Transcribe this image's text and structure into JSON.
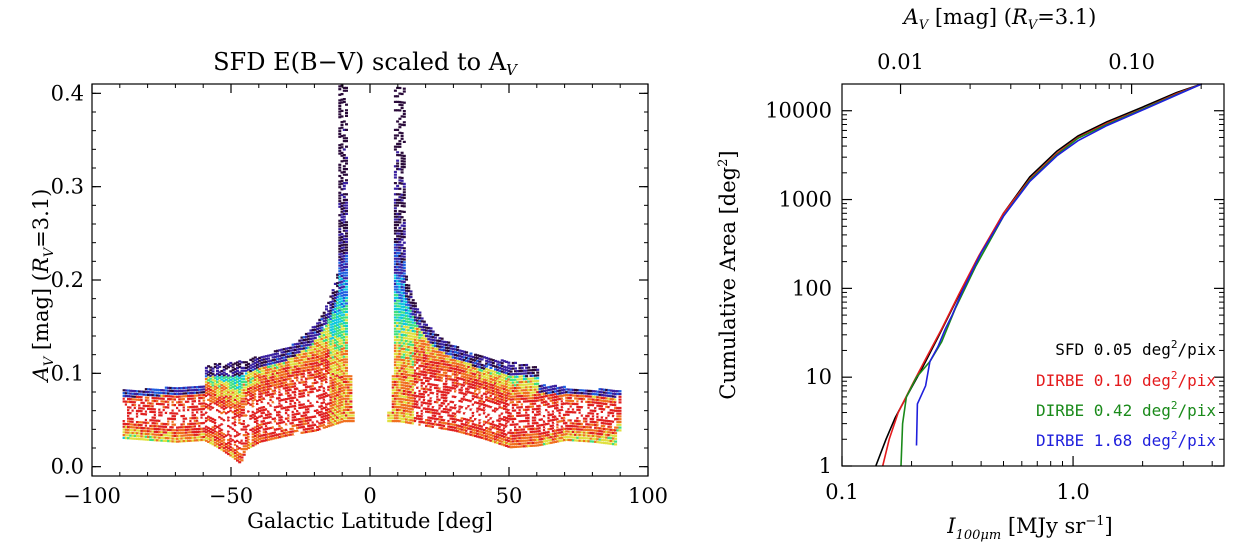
{
  "chart_data": [
    {
      "type": "heatmap",
      "title": "SFD E(B−V) scaled to A",
      "title_sub": "V",
      "xlabel": "Galactic Latitude [deg]",
      "ylabel_main": "A",
      "ylabel_sub": "V",
      "ylabel_mid": " [mag] (",
      "ylabel_r": "R",
      "ylabel_rsub": "V",
      "ylabel_end": "=3.1)",
      "xlim": [
        -100,
        100
      ],
      "ylim": [
        -0.01,
        0.41
      ],
      "xticks": [
        -100,
        -50,
        0,
        50,
        100
      ],
      "xtick_labels": [
        "−100",
        "−50",
        "0",
        "50",
        "100"
      ],
      "yticks": [
        0.0,
        0.1,
        0.2,
        0.3,
        0.4
      ],
      "ytick_labels": [
        "0.0",
        "0.1",
        "0.2",
        "0.3",
        "0.4"
      ],
      "colormap": [
        "#2a0a3a",
        "#3a20a0",
        "#2060e0",
        "#10c8e0",
        "#40e080",
        "#e0e040",
        "#f07020",
        "#e02020",
        "#ffffff"
      ],
      "density_profile": {
        "description_free": true,
        "lat_min": -89,
        "lat_max": 90,
        "gap_halfwidth_at_top": 7,
        "floor_values": [
          [
            -89,
            0.032
          ],
          [
            -80,
            0.03
          ],
          [
            -70,
            0.028
          ],
          [
            -60,
            0.03
          ],
          [
            -55,
            0.022
          ],
          [
            -50,
            0.012
          ],
          [
            -47,
            0.005
          ],
          [
            -45,
            0.02
          ],
          [
            -40,
            0.028
          ],
          [
            -30,
            0.035
          ],
          [
            -20,
            0.04
          ],
          [
            -10,
            0.05
          ],
          [
            10,
            0.05
          ],
          [
            20,
            0.045
          ],
          [
            30,
            0.04
          ],
          [
            40,
            0.032
          ],
          [
            50,
            0.022
          ],
          [
            60,
            0.024
          ],
          [
            70,
            0.03
          ],
          [
            80,
            0.028
          ],
          [
            88,
            0.025
          ]
        ]
      }
    },
    {
      "type": "line",
      "xlabel_main": "I",
      "xlabel_sub": "100μm",
      "xlabel_rest": " [MJy sr",
      "xlabel_sup": "−1",
      "xlabel_end": "]",
      "ylabel_main": "Cumulative Area [deg",
      "ylabel_sup": "2",
      "ylabel_end": "]",
      "toplabel_main": "A",
      "toplabel_sub": "V",
      "toplabel_mid": " [mag] (",
      "toplabel_r": "R",
      "toplabel_rsub": "V",
      "toplabel_end": "=3.1)",
      "xscale": "log",
      "yscale": "log",
      "xlim": [
        0.1,
        4.5
      ],
      "ylim": [
        1,
        20000
      ],
      "xtick_labels": [
        "0.1",
        "1.0"
      ],
      "xticks": [
        0.1,
        1.0
      ],
      "ytick_labels": [
        "1",
        "10",
        "100",
        "1000",
        "10000"
      ],
      "yticks": [
        1,
        10,
        100,
        1000,
        10000
      ],
      "top_axis_ticks_Av": [
        0.01,
        0.1
      ],
      "top_axis_tick_labels": [
        "0.01",
        "0.10"
      ],
      "top_axis_Av_per_MJy": 0.0558,
      "series": [
        {
          "name": "SFD",
          "res": "0.05 deg",
          "res_sup": "2",
          "res_end": "/pix",
          "color": "#000000",
          "x": [
            0.14,
            0.155,
            0.17,
            0.19,
            0.22,
            0.26,
            0.31,
            0.38,
            0.5,
            0.65,
            0.85,
            1.05,
            1.4,
            2.0,
            2.8,
            3.6
          ],
          "y": [
            1,
            2,
            3.5,
            6,
            12,
            28,
            70,
            200,
            700,
            1800,
            3500,
            5200,
            7500,
            11000,
            16000,
            20000
          ]
        },
        {
          "name": "DIRBE",
          "res": "0.10 deg",
          "res_sup": "2",
          "res_end": "/pix",
          "color": "#e41a1c",
          "x": [
            0.15,
            0.16,
            0.175,
            0.2,
            0.23,
            0.27,
            0.32,
            0.39,
            0.5,
            0.65,
            0.85,
            1.05,
            1.4,
            2.0,
            2.8,
            3.6
          ],
          "y": [
            1,
            2,
            4,
            8,
            16,
            35,
            85,
            230,
            700,
            1700,
            3300,
            5000,
            7200,
            10500,
            15500,
            20000
          ]
        },
        {
          "name": "DIRBE",
          "res": "0.42 deg",
          "res_sup": "2",
          "res_end": "/pix",
          "color": "#1a8a1a",
          "x": [
            0.18,
            0.183,
            0.19,
            0.21,
            0.24,
            0.27,
            0.31,
            0.38,
            0.5,
            0.65,
            0.85,
            1.05,
            1.4,
            2.0,
            2.8,
            3.6
          ],
          "y": [
            1,
            3,
            6,
            10,
            15,
            25,
            60,
            180,
            650,
            1650,
            3200,
            4900,
            7000,
            10400,
            15200,
            20000
          ]
        },
        {
          "name": "DIRBE",
          "res": "1.68 deg",
          "res_sup": "2",
          "res_end": "/pix",
          "color": "#1f1fdc",
          "x": [
            0.21,
            0.212,
            0.23,
            0.24,
            0.26,
            0.28,
            0.3,
            0.33,
            0.4,
            0.5,
            0.65,
            0.85,
            1.05,
            1.4,
            2.0,
            2.8,
            3.6
          ],
          "y": [
            1.7,
            5,
            8,
            15,
            22,
            35,
            50,
            90,
            250,
            650,
            1600,
            3100,
            4600,
            6800,
            10200,
            15000,
            20000
          ]
        }
      ]
    }
  ]
}
